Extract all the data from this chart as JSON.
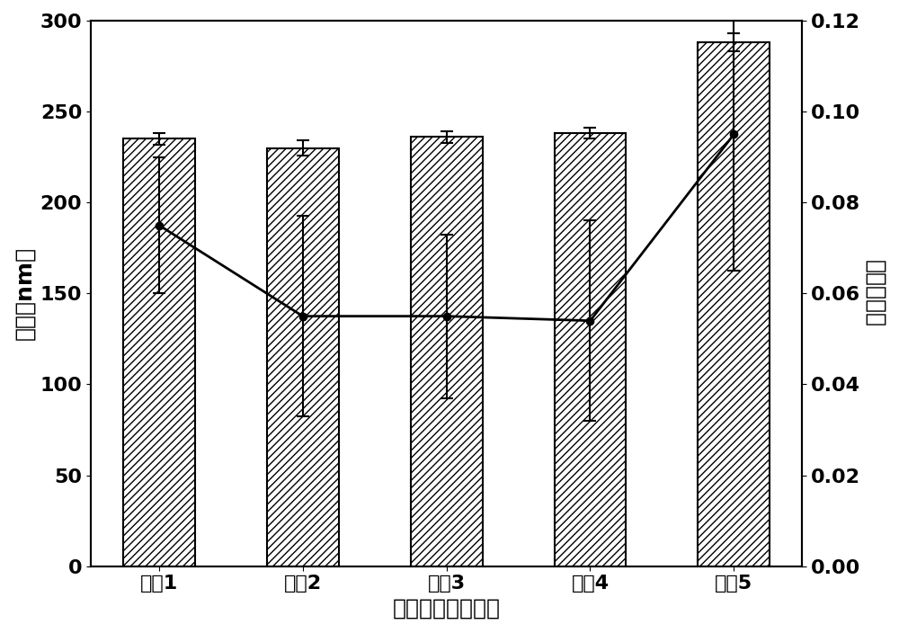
{
  "categories": [
    "处方1",
    "处方2",
    "处方3",
    "处方4",
    "处方5"
  ],
  "bar_values": [
    235,
    230,
    236,
    238,
    288
  ],
  "bar_errors": [
    3,
    4,
    3,
    3,
    5
  ],
  "line_values": [
    0.075,
    0.055,
    0.055,
    0.054,
    0.095
  ],
  "line_errors": [
    0.015,
    0.022,
    0.018,
    0.022,
    0.03
  ],
  "bar_color": "white",
  "bar_edgecolor": "black",
  "bar_hatch": "////",
  "line_color": "black",
  "line_marker": "o",
  "left_ylabel": "粒径（nm）",
  "right_ylabel": "多分散系数",
  "xlabel": "不同投药量的处方",
  "left_ylim": [
    0,
    300
  ],
  "right_ylim": [
    0.0,
    0.12
  ],
  "left_yticks": [
    0,
    50,
    100,
    150,
    200,
    250,
    300
  ],
  "right_yticks": [
    0.0,
    0.02,
    0.04,
    0.06,
    0.08,
    0.1,
    0.12
  ],
  "bar_width": 0.5,
  "background_color": "white",
  "font_size": 16,
  "label_font_size": 18,
  "tick_font_size": 16
}
